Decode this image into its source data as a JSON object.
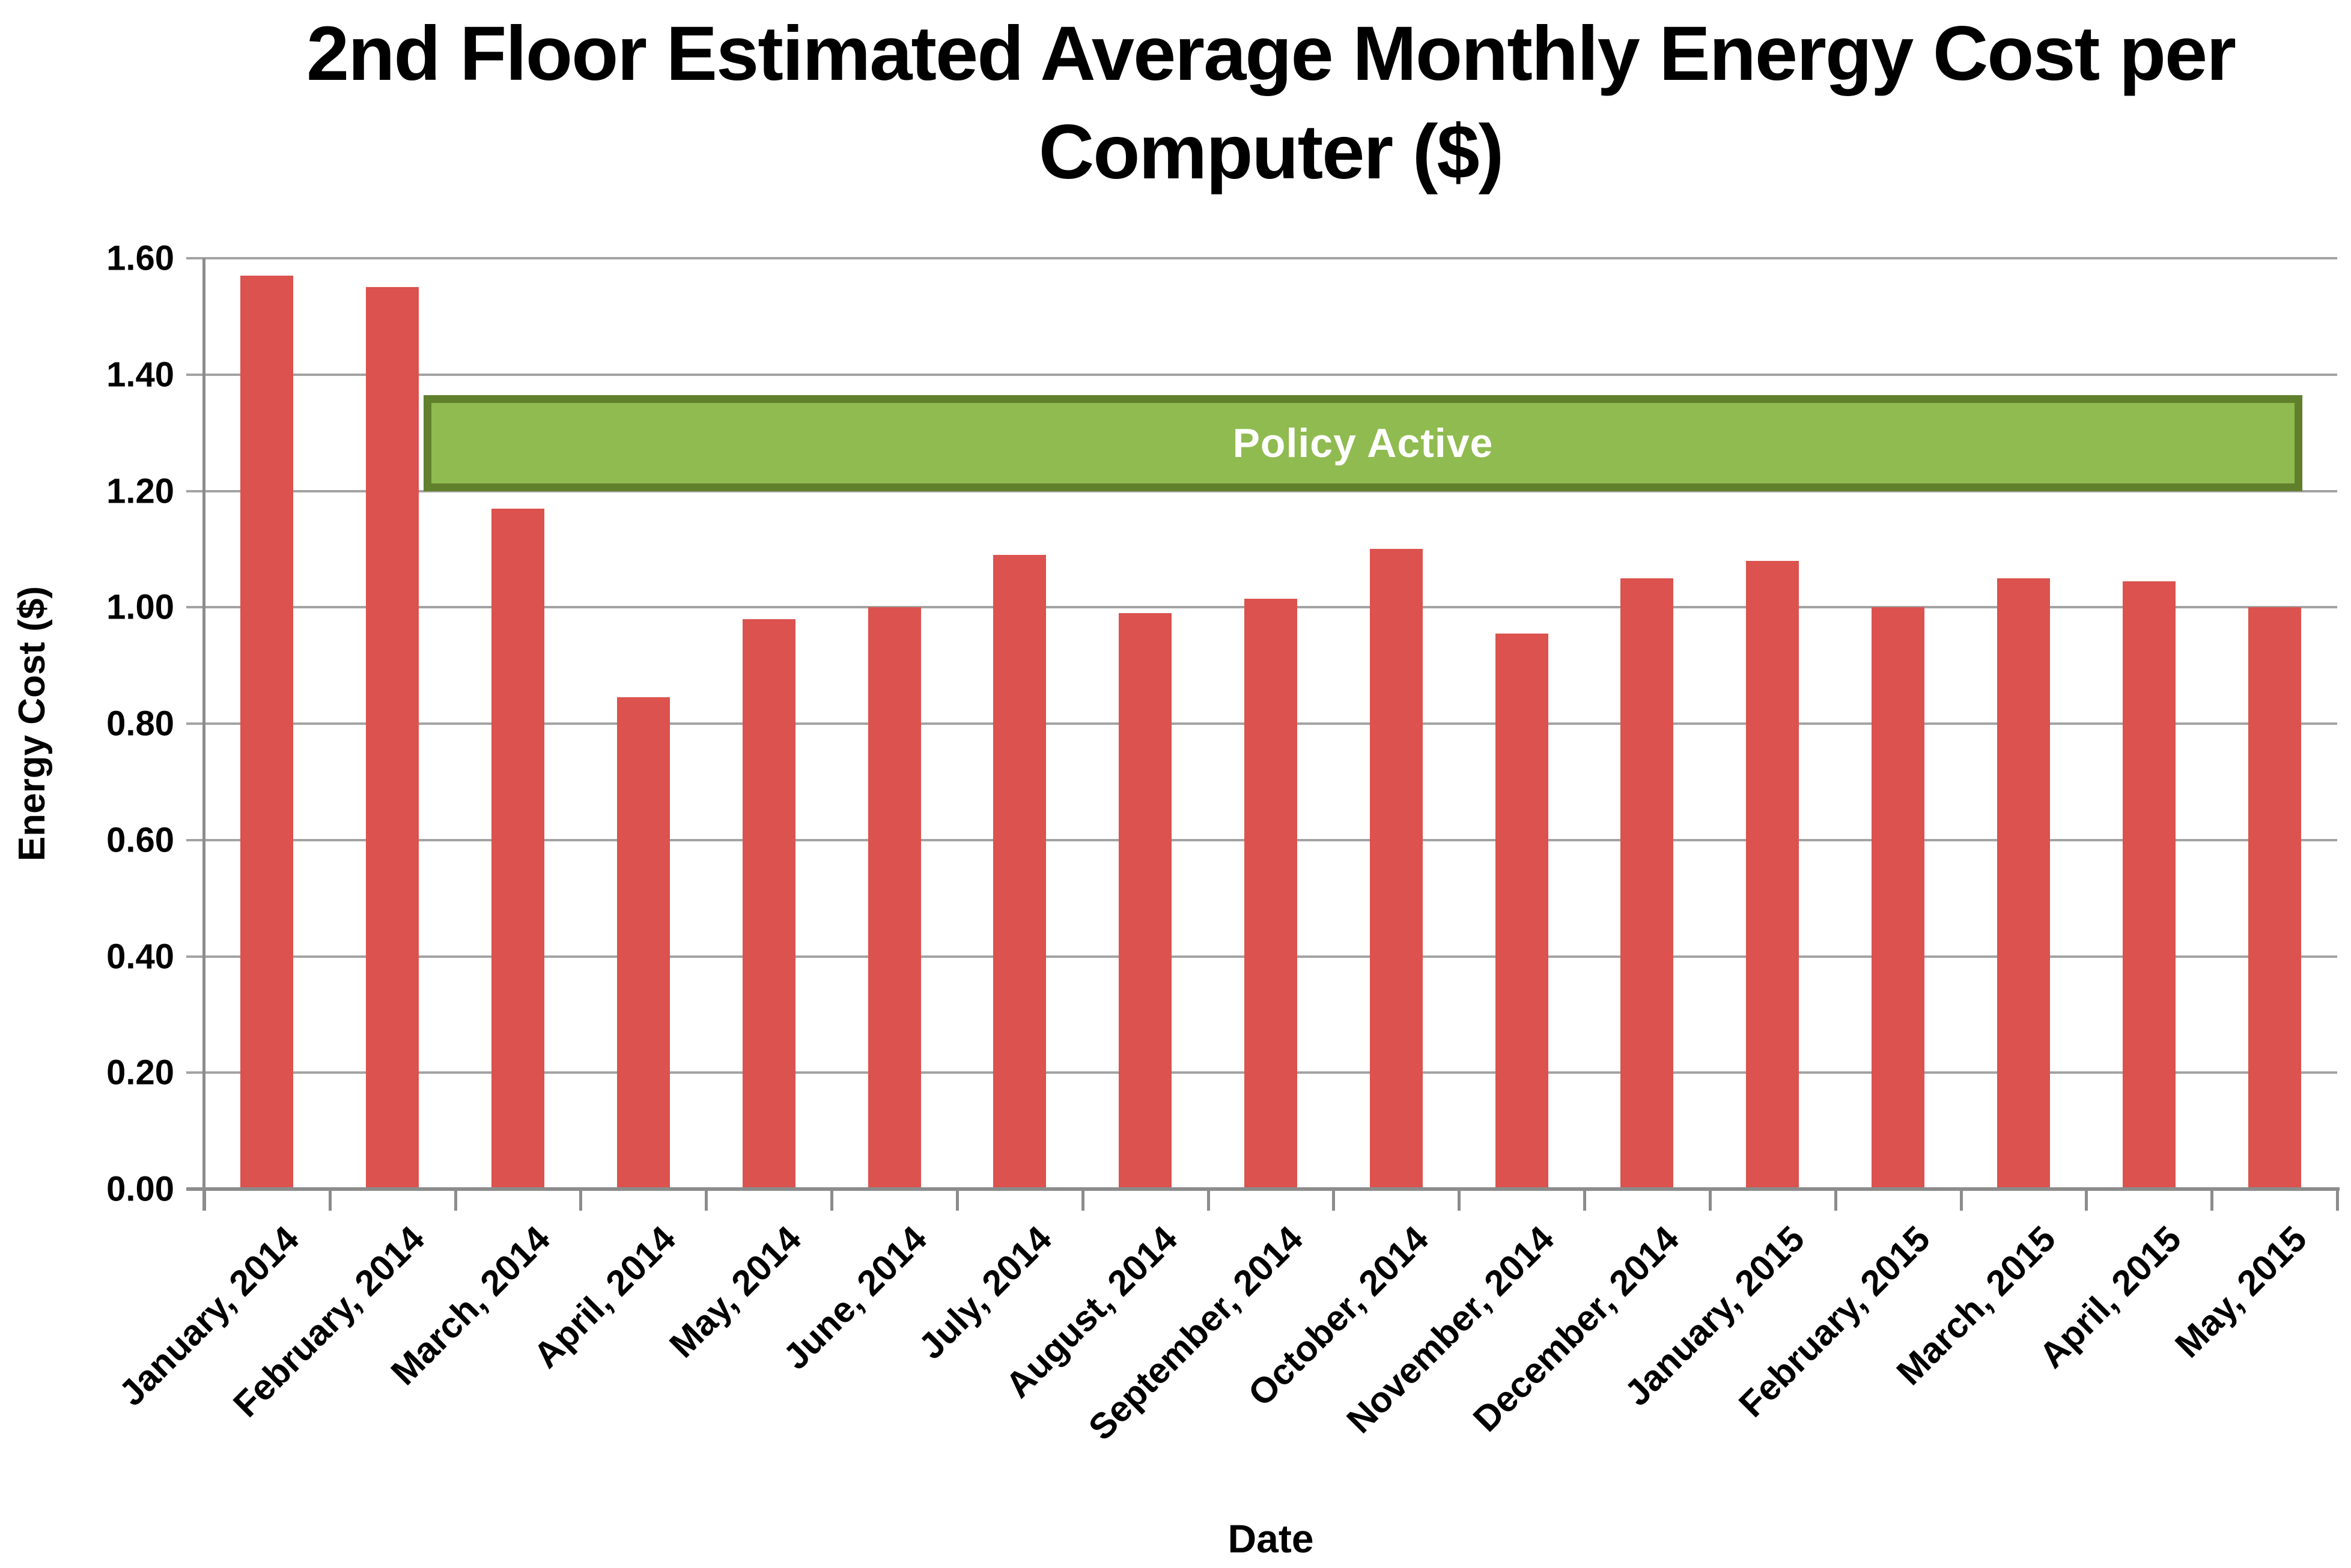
{
  "title": {
    "line1": "2nd Floor Estimated Average Monthly Energy Cost per",
    "line2": "Computer ($)"
  },
  "y_axis": {
    "title": "Energy Cost ($)",
    "tick_labels": [
      "0.00",
      "0.20",
      "0.40",
      "0.60",
      "0.80",
      "1.00",
      "1.20",
      "1.40",
      "1.60"
    ]
  },
  "x_axis": {
    "title": "Date"
  },
  "banner": {
    "label": "Policy Active",
    "fill_color": "#8fbb50",
    "border_color": "#61802c",
    "text_color": "#ffffff",
    "y_from": 1.2,
    "y_to": 1.365
  },
  "colors": {
    "bar": "#db524e",
    "gridline": "#a3a3a3",
    "axis": "#8c8c8c",
    "background": "#ffffff"
  },
  "chart_data": {
    "type": "bar",
    "title": "2nd Floor Estimated Average Monthly Energy Cost per Computer ($)",
    "xlabel": "Date",
    "ylabel": "Energy Cost ($)",
    "ylim": [
      0,
      1.6
    ],
    "ytick_step": 0.2,
    "grid": true,
    "legend_position": "none",
    "categories": [
      "January, 2014",
      "February, 2014",
      "March, 2014",
      "April, 2014",
      "May, 2014",
      "June, 2014",
      "July, 2014",
      "August, 2014",
      "September, 2014",
      "October, 2014",
      "November, 2014",
      "December, 2014",
      "January, 2015",
      "February, 2015",
      "March, 2015",
      "April, 2015",
      "May, 2015"
    ],
    "values": [
      1.57,
      1.55,
      1.17,
      0.845,
      0.98,
      1.0,
      1.09,
      0.99,
      1.015,
      1.1,
      0.955,
      1.05,
      1.08,
      1.0,
      1.05,
      1.045,
      1.0
    ],
    "annotation": {
      "label": "Policy Active",
      "y_from": 1.2,
      "y_to": 1.365,
      "x_from_slot": 1.75,
      "x_to_slot": 16.72,
      "note": "green band active from just after February 2014 through May 2015"
    }
  }
}
